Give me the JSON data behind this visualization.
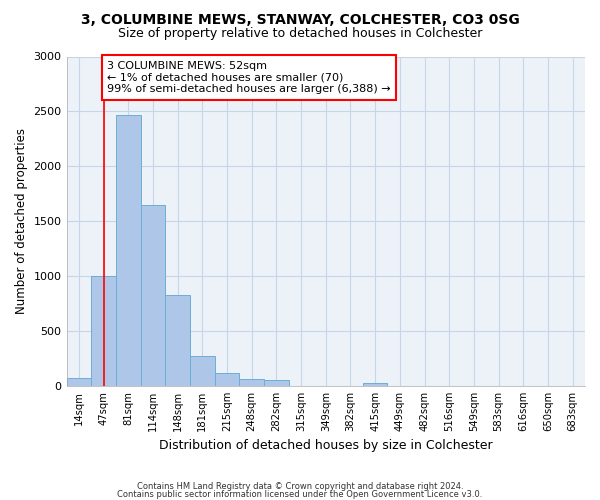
{
  "title_line1": "3, COLUMBINE MEWS, STANWAY, COLCHESTER, CO3 0SG",
  "title_line2": "Size of property relative to detached houses in Colchester",
  "xlabel": "Distribution of detached houses by size in Colchester",
  "ylabel": "Number of detached properties",
  "bin_labels": [
    "14sqm",
    "47sqm",
    "81sqm",
    "114sqm",
    "148sqm",
    "181sqm",
    "215sqm",
    "248sqm",
    "282sqm",
    "315sqm",
    "349sqm",
    "382sqm",
    "415sqm",
    "449sqm",
    "482sqm",
    "516sqm",
    "549sqm",
    "583sqm",
    "616sqm",
    "650sqm",
    "683sqm"
  ],
  "bar_heights": [
    70,
    1000,
    2470,
    1650,
    830,
    270,
    120,
    60,
    50,
    0,
    0,
    0,
    30,
    0,
    0,
    0,
    0,
    0,
    0,
    0,
    0
  ],
  "bar_color": "#aec6e8",
  "bar_edge_color": "#6aaed6",
  "vline_x": 1,
  "annotation_text": "3 COLUMBINE MEWS: 52sqm\n← 1% of detached houses are smaller (70)\n99% of semi-detached houses are larger (6,388) →",
  "annotation_box_color": "white",
  "annotation_border_color": "red",
  "vline_color": "red",
  "ylim": [
    0,
    3000
  ],
  "yticks": [
    0,
    500,
    1000,
    1500,
    2000,
    2500,
    3000
  ],
  "footer_line1": "Contains HM Land Registry data © Crown copyright and database right 2024.",
  "footer_line2": "Contains public sector information licensed under the Open Government Licence v3.0.",
  "bg_color": "#edf2f9",
  "grid_color": "#c8d4e8"
}
